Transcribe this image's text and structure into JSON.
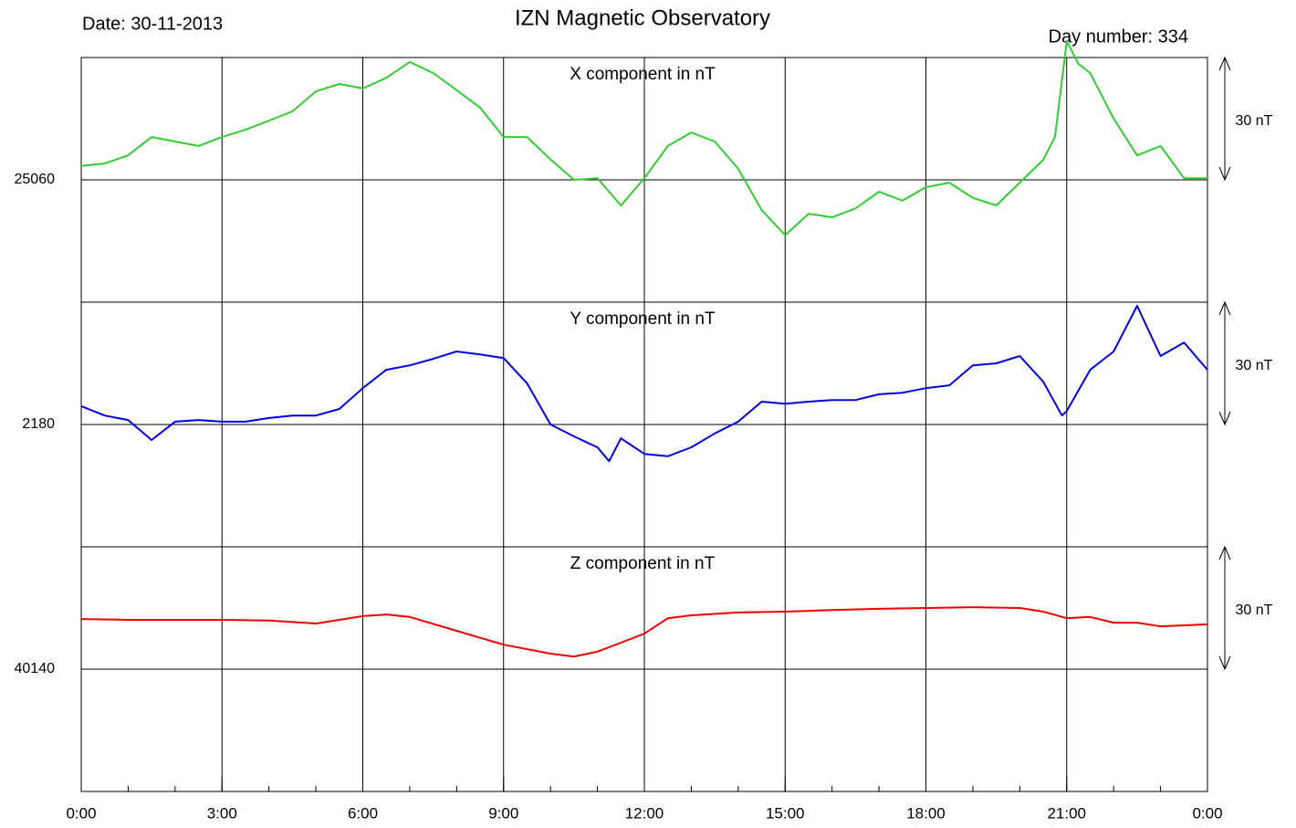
{
  "title": "IZN Magnetic Observatory",
  "date": "Date: 30-11-2013",
  "day_number": "Day number: 334",
  "chart_data": [
    {
      "type": "line",
      "title": "X component in nT",
      "scale_label": "30 nT",
      "color": "#33cc33",
      "x": [
        0,
        0.5,
        1,
        1.5,
        2,
        2.5,
        3,
        3.5,
        4,
        4.5,
        5,
        5.5,
        6,
        6.5,
        7,
        7.5,
        8,
        8.5,
        9,
        9.5,
        10,
        10.5,
        11,
        11.5,
        12,
        12.5,
        13,
        13.5,
        14,
        14.5,
        15,
        15.5,
        16,
        16.5,
        17,
        17.5,
        18,
        18.5,
        19,
        19.5,
        20,
        20.5,
        20.75,
        21,
        21.25,
        21.5,
        22,
        22.5,
        23,
        23.5,
        24
      ],
      "values": [
        25063.4,
        25064,
        25066,
        25070.5,
        25069.4,
        25068.3,
        25070.5,
        25072.3,
        25074.5,
        25076.8,
        25081.7,
        25083.5,
        25082.4,
        25085,
        25088.9,
        25086.2,
        25082,
        25077.7,
        25070.5,
        25070.5,
        25065,
        25060,
        25060.4,
        25053.7,
        25060.4,
        25068.3,
        25071.6,
        25069.4,
        25062.7,
        25052.6,
        25046.4,
        25051.7,
        25050.8,
        25053,
        25057.1,
        25054.9,
        25058.2,
        25059.3,
        25055.6,
        25053.7,
        25059.3,
        25064.9,
        25070.5,
        25094,
        25088.4,
        25086.2,
        25075,
        25066,
        25068.3,
        25060.4,
        25060.4
      ],
      "xlim": [
        0,
        24
      ],
      "xticks": [
        0,
        3,
        6,
        9,
        12,
        15,
        18,
        21,
        24
      ],
      "ylim": [
        25030,
        25090
      ],
      "yticks": [
        25060
      ]
    },
    {
      "type": "line",
      "title": "Y component in nT",
      "scale_label": "30 nT",
      "color": "#0000dd",
      "x": [
        0,
        0.5,
        1,
        1.5,
        2,
        2.5,
        3,
        3.5,
        4,
        4.5,
        5,
        5.5,
        6,
        6.5,
        7,
        7.5,
        8,
        8.5,
        9,
        9.5,
        10,
        10.5,
        11,
        11.25,
        11.5,
        12,
        12.5,
        13,
        13.5,
        14,
        14.5,
        15,
        15.5,
        16,
        16.5,
        17,
        17.5,
        18,
        18.5,
        19,
        19.5,
        20,
        20.5,
        20.9,
        21,
        21.5,
        22,
        22.5,
        23,
        23.5,
        24
      ],
      "values": [
        2184.5,
        2182.2,
        2181.1,
        2176.2,
        2180.7,
        2181.1,
        2180.7,
        2180.7,
        2181.6,
        2182.2,
        2182.2,
        2183.8,
        2188.9,
        2193.4,
        2194.5,
        2196.1,
        2197.9,
        2197.2,
        2196.3,
        2190.1,
        2180,
        2177.1,
        2174.4,
        2171,
        2176.6,
        2172.8,
        2172.2,
        2174.4,
        2177.8,
        2180.7,
        2185.6,
        2185.1,
        2185.6,
        2186,
        2186,
        2187.4,
        2187.8,
        2188.9,
        2189.6,
        2194.5,
        2195,
        2196.8,
        2190.5,
        2182.2,
        2183.3,
        2193.4,
        2197.9,
        2209.1,
        2196.8,
        2200.1,
        2193.4
      ],
      "xlim": [
        0,
        24
      ],
      "xticks": [
        0,
        3,
        6,
        9,
        12,
        15,
        18,
        21,
        24
      ],
      "ylim": [
        2150,
        2210
      ],
      "yticks": [
        2180
      ]
    },
    {
      "type": "line",
      "title": "Z component in nT",
      "scale_label": "30 nT",
      "color": "#ee0000",
      "x": [
        0,
        1,
        2,
        3,
        4,
        5,
        6,
        6.5,
        7,
        8,
        9,
        10,
        10.5,
        11,
        11.5,
        12,
        12.5,
        13,
        14,
        15,
        16,
        17,
        18,
        19,
        20,
        20.5,
        21,
        21.5,
        22,
        22.5,
        23,
        24
      ],
      "values": [
        40152.3,
        40152.1,
        40152.1,
        40152.1,
        40151.9,
        40151.2,
        40153,
        40153.4,
        40152.8,
        40149.4,
        40146,
        40143.8,
        40143.1,
        40144.3,
        40146.5,
        40148.7,
        40152.5,
        40153.2,
        40153.9,
        40154.1,
        40154.5,
        40154.8,
        40155,
        40155.2,
        40155,
        40154.1,
        40152.5,
        40152.8,
        40151.4,
        40151.4,
        40150.5,
        40151
      ],
      "xlim": [
        0,
        24
      ],
      "xticks": [
        {
          "value": 0,
          "label": "0:00"
        },
        {
          "value": 3,
          "label": "3:00"
        },
        {
          "value": 6,
          "label": "6:00"
        },
        {
          "value": 9,
          "label": "9:00"
        },
        {
          "value": 12,
          "label": "12:00"
        },
        {
          "value": 15,
          "label": "15:00"
        },
        {
          "value": 18,
          "label": "18:00"
        },
        {
          "value": 21,
          "label": "21:00"
        },
        {
          "value": 24,
          "label": "0:00"
        }
      ],
      "minor_xticks": [
        0,
        1,
        2,
        3,
        4,
        5,
        6,
        7,
        8,
        9,
        10,
        11,
        12,
        13,
        14,
        15,
        16,
        17,
        18,
        19,
        20,
        21,
        22,
        23,
        24
      ],
      "ylim": [
        40110,
        40170
      ],
      "yticks": [
        40140
      ]
    }
  ]
}
